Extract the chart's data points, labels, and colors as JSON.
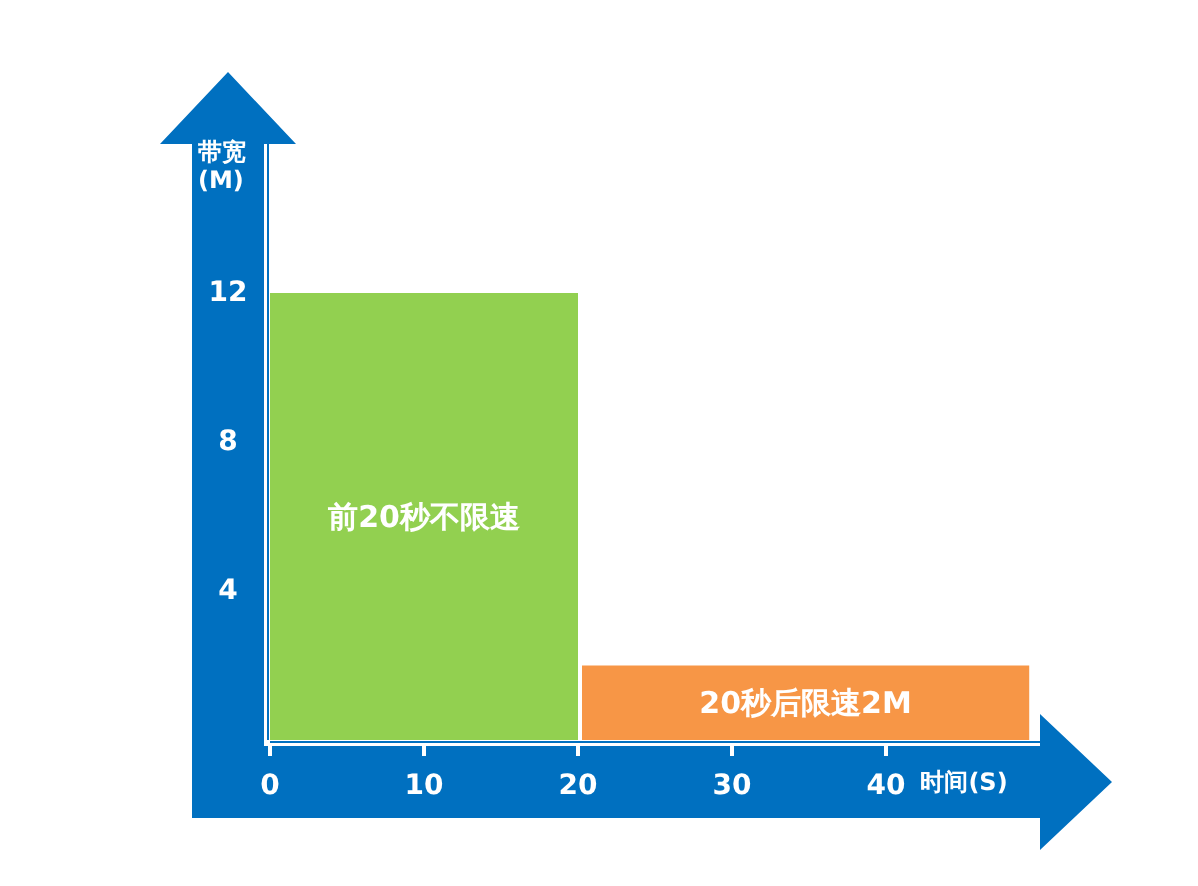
{
  "chart_data": {
    "type": "bar",
    "xlabel": "时间(S)",
    "ylabel": "带宽(M)",
    "x": [
      10,
      34.65
    ],
    "series": [
      {
        "values": [
          12,
          2
        ],
        "colors": [
          "#92d050",
          "#f79646"
        ]
      }
    ],
    "annotations": [
      "前20秒不限速",
      "20秒后限速2M"
    ],
    "xlim": [
      0,
      50
    ],
    "ylim": [
      0,
      16
    ],
    "xticks": [
      0,
      10,
      20,
      30,
      40
    ],
    "yticks": [
      4,
      8,
      12
    ]
  }
}
